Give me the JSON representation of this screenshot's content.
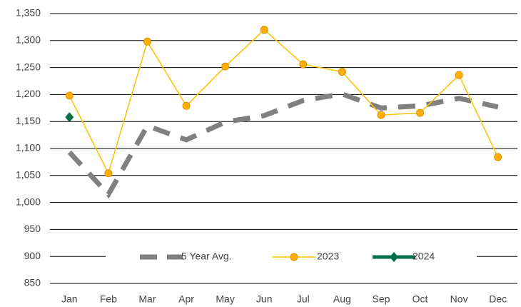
{
  "chart_data": {
    "type": "line",
    "categories": [
      "Jan",
      "Feb",
      "Mar",
      "Apr",
      "May",
      "Jun",
      "Jul",
      "Aug",
      "Sep",
      "Oct",
      "Nov",
      "Dec"
    ],
    "series": [
      {
        "name": "5 Year Avg.",
        "color": "#808080",
        "style": "dashed",
        "marker": "none",
        "values": [
          1093,
          1015,
          1142,
          1116,
          1149,
          1161,
          1189,
          1201,
          1175,
          1179,
          1193,
          1177
        ]
      },
      {
        "name": "2023",
        "color": "#FFC000",
        "style": "solid",
        "marker": "circle",
        "values": [
          1198,
          1054,
          1298,
          1179,
          1252,
          1320,
          1256,
          1242,
          1162,
          1166,
          1236,
          1084
        ]
      },
      {
        "name": "2024",
        "color": "#00704A",
        "style": "solid",
        "marker": "diamond",
        "values": [
          1158,
          null,
          null,
          null,
          null,
          null,
          null,
          null,
          null,
          null,
          null,
          null
        ]
      }
    ],
    "ylim": [
      850,
      1350
    ],
    "yticks": [
      850,
      900,
      950,
      {
        "value": 1000,
        "label": "1,000"
      },
      {
        "value": 1050,
        "label": "1,050"
      },
      {
        "value": 1100,
        "label": "1,100"
      },
      {
        "value": 1150,
        "label": "1,150"
      },
      {
        "value": 1200,
        "label": "1,200"
      },
      {
        "value": 1250,
        "label": "1,250"
      },
      {
        "value": 1300,
        "label": "1,300"
      },
      {
        "value": 1350,
        "label": "1,350"
      }
    ],
    "grid": true,
    "legend": "bottom"
  }
}
